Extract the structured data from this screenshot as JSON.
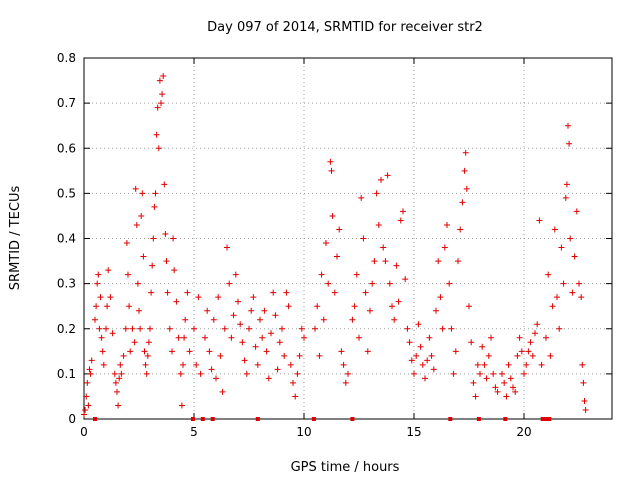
{
  "chart_data": {
    "type": "scatter",
    "title": "Day 097 of 2014, SRMTID for receiver str2",
    "xlabel": "GPS time / hours",
    "ylabel": "SRMTID / TECUs",
    "xlim": [
      0,
      24
    ],
    "ylim": [
      0,
      0.8
    ],
    "x_ticks": [
      0,
      5,
      10,
      15,
      20
    ],
    "x_tick_labels": [
      "0",
      "5",
      "10",
      "15",
      "20"
    ],
    "y_ticks": [
      0,
      0.1,
      0.2,
      0.3,
      0.4,
      0.5,
      0.6,
      0.7,
      0.8
    ],
    "y_tick_labels": [
      "0",
      "0.1",
      "0.2",
      "0.3",
      "0.4",
      "0.5",
      "0.6",
      "0.7",
      "0.8"
    ],
    "grid": true,
    "marker": "plus",
    "series_color": "#e00000",
    "series": [
      {
        "name": "SRMTID",
        "points": [
          [
            0.0,
            0.01
          ],
          [
            0.05,
            0.02
          ],
          [
            0.1,
            0.05
          ],
          [
            0.15,
            0.08
          ],
          [
            0.2,
            0.03
          ],
          [
            0.25,
            0.11
          ],
          [
            0.3,
            0.1
          ],
          [
            0.35,
            0.13
          ],
          [
            0.5,
            0.22
          ],
          [
            0.55,
            0.25
          ],
          [
            0.6,
            0.3
          ],
          [
            0.65,
            0.32
          ],
          [
            0.7,
            0.2
          ],
          [
            0.75,
            0.27
          ],
          [
            0.8,
            0.18
          ],
          [
            0.85,
            0.15
          ],
          [
            0.9,
            0.12
          ],
          [
            1.0,
            0.2
          ],
          [
            1.05,
            0.25
          ],
          [
            1.1,
            0.33
          ],
          [
            1.2,
            0.27
          ],
          [
            1.3,
            0.19
          ],
          [
            1.4,
            0.1
          ],
          [
            1.45,
            0.08
          ],
          [
            1.5,
            0.06
          ],
          [
            1.55,
            0.03
          ],
          [
            1.6,
            0.09
          ],
          [
            1.65,
            0.12
          ],
          [
            1.7,
            0.1
          ],
          [
            1.8,
            0.14
          ],
          [
            1.9,
            0.2
          ],
          [
            1.95,
            0.39
          ],
          [
            2.0,
            0.32
          ],
          [
            2.05,
            0.25
          ],
          [
            2.1,
            0.15
          ],
          [
            2.2,
            0.2
          ],
          [
            2.3,
            0.17
          ],
          [
            2.35,
            0.51
          ],
          [
            2.4,
            0.43
          ],
          [
            2.45,
            0.3
          ],
          [
            2.5,
            0.24
          ],
          [
            2.55,
            0.2
          ],
          [
            2.6,
            0.45
          ],
          [
            2.65,
            0.5
          ],
          [
            2.7,
            0.36
          ],
          [
            2.75,
            0.15
          ],
          [
            2.8,
            0.12
          ],
          [
            2.85,
            0.1
          ],
          [
            2.9,
            0.14
          ],
          [
            2.95,
            0.17
          ],
          [
            3.0,
            0.2
          ],
          [
            3.05,
            0.28
          ],
          [
            3.1,
            0.34
          ],
          [
            3.15,
            0.4
          ],
          [
            3.2,
            0.47
          ],
          [
            3.25,
            0.5
          ],
          [
            3.3,
            0.63
          ],
          [
            3.35,
            0.69
          ],
          [
            3.4,
            0.6
          ],
          [
            3.45,
            0.75
          ],
          [
            3.5,
            0.7
          ],
          [
            3.55,
            0.72
          ],
          [
            3.6,
            0.76
          ],
          [
            3.65,
            0.52
          ],
          [
            3.7,
            0.41
          ],
          [
            3.75,
            0.35
          ],
          [
            3.8,
            0.28
          ],
          [
            3.9,
            0.2
          ],
          [
            4.0,
            0.15
          ],
          [
            4.05,
            0.4
          ],
          [
            4.1,
            0.33
          ],
          [
            4.2,
            0.26
          ],
          [
            4.3,
            0.18
          ],
          [
            4.4,
            0.1
          ],
          [
            4.45,
            0.03
          ],
          [
            4.5,
            0.12
          ],
          [
            4.55,
            0.18
          ],
          [
            4.6,
            0.22
          ],
          [
            4.7,
            0.28
          ],
          [
            4.8,
            0.15
          ],
          [
            5.0,
            0.2
          ],
          [
            5.1,
            0.12
          ],
          [
            5.2,
            0.27
          ],
          [
            5.3,
            0.1
          ],
          [
            5.5,
            0.18
          ],
          [
            5.6,
            0.24
          ],
          [
            5.7,
            0.15
          ],
          [
            5.8,
            0.11
          ],
          [
            5.9,
            0.22
          ],
          [
            6.0,
            0.09
          ],
          [
            6.1,
            0.27
          ],
          [
            6.2,
            0.14
          ],
          [
            6.3,
            0.06
          ],
          [
            6.4,
            0.2
          ],
          [
            6.5,
            0.38
          ],
          [
            6.6,
            0.3
          ],
          [
            6.7,
            0.18
          ],
          [
            6.8,
            0.23
          ],
          [
            6.9,
            0.32
          ],
          [
            7.0,
            0.26
          ],
          [
            7.1,
            0.21
          ],
          [
            7.2,
            0.17
          ],
          [
            7.3,
            0.13
          ],
          [
            7.4,
            0.1
          ],
          [
            7.5,
            0.2
          ],
          [
            7.6,
            0.24
          ],
          [
            7.7,
            0.27
          ],
          [
            7.8,
            0.16
          ],
          [
            7.9,
            0.12
          ],
          [
            8.0,
            0.22
          ],
          [
            8.1,
            0.18
          ],
          [
            8.2,
            0.24
          ],
          [
            8.3,
            0.15
          ],
          [
            8.4,
            0.09
          ],
          [
            8.5,
            0.19
          ],
          [
            8.6,
            0.28
          ],
          [
            8.7,
            0.23
          ],
          [
            8.8,
            0.11
          ],
          [
            8.9,
            0.17
          ],
          [
            9.0,
            0.2
          ],
          [
            9.1,
            0.14
          ],
          [
            9.2,
            0.28
          ],
          [
            9.3,
            0.25
          ],
          [
            9.4,
            0.12
          ],
          [
            9.5,
            0.08
          ],
          [
            9.6,
            0.05
          ],
          [
            9.7,
            0.1
          ],
          [
            9.8,
            0.14
          ],
          [
            9.9,
            0.2
          ],
          [
            10.0,
            0.18
          ],
          [
            10.5,
            0.2
          ],
          [
            10.6,
            0.25
          ],
          [
            10.7,
            0.14
          ],
          [
            10.8,
            0.32
          ],
          [
            10.9,
            0.22
          ],
          [
            11.0,
            0.39
          ],
          [
            11.1,
            0.3
          ],
          [
            11.2,
            0.57
          ],
          [
            11.25,
            0.55
          ],
          [
            11.3,
            0.45
          ],
          [
            11.4,
            0.28
          ],
          [
            11.5,
            0.36
          ],
          [
            11.6,
            0.42
          ],
          [
            11.7,
            0.15
          ],
          [
            11.8,
            0.12
          ],
          [
            11.9,
            0.08
          ],
          [
            12.0,
            0.1
          ],
          [
            12.2,
            0.22
          ],
          [
            12.3,
            0.25
          ],
          [
            12.4,
            0.32
          ],
          [
            12.5,
            0.18
          ],
          [
            12.6,
            0.49
          ],
          [
            12.7,
            0.4
          ],
          [
            12.8,
            0.28
          ],
          [
            12.9,
            0.15
          ],
          [
            13.0,
            0.24
          ],
          [
            13.1,
            0.3
          ],
          [
            13.2,
            0.35
          ],
          [
            13.3,
            0.5
          ],
          [
            13.4,
            0.43
          ],
          [
            13.5,
            0.53
          ],
          [
            13.6,
            0.38
          ],
          [
            13.7,
            0.35
          ],
          [
            13.8,
            0.54
          ],
          [
            13.9,
            0.3
          ],
          [
            14.0,
            0.25
          ],
          [
            14.1,
            0.22
          ],
          [
            14.2,
            0.34
          ],
          [
            14.3,
            0.26
          ],
          [
            14.4,
            0.44
          ],
          [
            14.5,
            0.46
          ],
          [
            14.6,
            0.31
          ],
          [
            14.7,
            0.2
          ],
          [
            14.8,
            0.17
          ],
          [
            14.9,
            0.13
          ],
          [
            15.0,
            0.1
          ],
          [
            15.1,
            0.14
          ],
          [
            15.2,
            0.21
          ],
          [
            15.3,
            0.16
          ],
          [
            15.4,
            0.12
          ],
          [
            15.5,
            0.09
          ],
          [
            15.6,
            0.13
          ],
          [
            15.7,
            0.18
          ],
          [
            15.8,
            0.14
          ],
          [
            15.9,
            0.11
          ],
          [
            16.0,
            0.24
          ],
          [
            16.1,
            0.35
          ],
          [
            16.2,
            0.27
          ],
          [
            16.3,
            0.2
          ],
          [
            16.4,
            0.38
          ],
          [
            16.5,
            0.43
          ],
          [
            16.6,
            0.3
          ],
          [
            16.7,
            0.2
          ],
          [
            16.8,
            0.1
          ],
          [
            16.9,
            0.15
          ],
          [
            17.0,
            0.35
          ],
          [
            17.1,
            0.42
          ],
          [
            17.2,
            0.48
          ],
          [
            17.3,
            0.55
          ],
          [
            17.35,
            0.59
          ],
          [
            17.4,
            0.51
          ],
          [
            17.5,
            0.25
          ],
          [
            17.6,
            0.17
          ],
          [
            17.7,
            0.08
          ],
          [
            17.8,
            0.05
          ],
          [
            17.9,
            0.12
          ],
          [
            18.0,
            0.1
          ],
          [
            18.1,
            0.16
          ],
          [
            18.2,
            0.12
          ],
          [
            18.3,
            0.09
          ],
          [
            18.4,
            0.14
          ],
          [
            18.5,
            0.18
          ],
          [
            18.6,
            0.1
          ],
          [
            18.7,
            0.07
          ],
          [
            18.8,
            0.06
          ],
          [
            19.0,
            0.1
          ],
          [
            19.1,
            0.08
          ],
          [
            19.2,
            0.05
          ],
          [
            19.3,
            0.12
          ],
          [
            19.4,
            0.09
          ],
          [
            19.5,
            0.07
          ],
          [
            19.6,
            0.06
          ],
          [
            19.7,
            0.14
          ],
          [
            19.8,
            0.18
          ],
          [
            19.9,
            0.15
          ],
          [
            20.0,
            0.1
          ],
          [
            20.1,
            0.12
          ],
          [
            20.2,
            0.15
          ],
          [
            20.3,
            0.17
          ],
          [
            20.4,
            0.14
          ],
          [
            20.5,
            0.19
          ],
          [
            20.6,
            0.21
          ],
          [
            20.7,
            0.44
          ],
          [
            20.8,
            0.12
          ],
          [
            21.0,
            0.18
          ],
          [
            21.1,
            0.32
          ],
          [
            21.2,
            0.14
          ],
          [
            21.3,
            0.25
          ],
          [
            21.4,
            0.42
          ],
          [
            21.5,
            0.27
          ],
          [
            21.6,
            0.2
          ],
          [
            21.7,
            0.38
          ],
          [
            21.8,
            0.3
          ],
          [
            21.9,
            0.49
          ],
          [
            21.95,
            0.52
          ],
          [
            22.0,
            0.65
          ],
          [
            22.05,
            0.61
          ],
          [
            22.1,
            0.4
          ],
          [
            22.2,
            0.28
          ],
          [
            22.3,
            0.36
          ],
          [
            22.4,
            0.46
          ],
          [
            22.5,
            0.3
          ],
          [
            22.6,
            0.27
          ],
          [
            22.65,
            0.12
          ],
          [
            22.7,
            0.08
          ],
          [
            22.75,
            0.04
          ],
          [
            22.8,
            0.02
          ]
        ]
      }
    ],
    "zero_markers_x": [
      0.5,
      4.95,
      5.4,
      5.85,
      7.9,
      10.45,
      12.2,
      16.65,
      17.95,
      19.15,
      20.85,
      21.0,
      21.15
    ]
  }
}
